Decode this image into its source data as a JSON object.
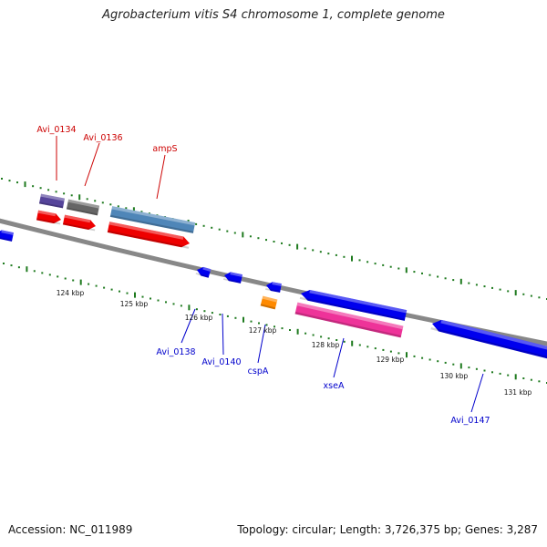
{
  "header": {
    "title": "Agrobacterium vitis S4 chromosome 1, complete genome"
  },
  "footer": {
    "accession": "Accession: NC_011989",
    "topology": "Topology: circular; Length: 3,726,375 bp; Genes: 3,287"
  },
  "scale_labels": [
    {
      "id": "124",
      "text": "124 kbp"
    },
    {
      "id": "125",
      "text": "125 kbp"
    },
    {
      "id": "126",
      "text": "126 kbp"
    },
    {
      "id": "127",
      "text": "127 kbp"
    },
    {
      "id": "128",
      "text": "128 kbp"
    },
    {
      "id": "129",
      "text": "129 kbp"
    },
    {
      "id": "130",
      "text": "130 kbp"
    },
    {
      "id": "131",
      "text": "131 kbp"
    }
  ],
  "gene_labels": [
    {
      "id": "avi0134",
      "text": "Avi_0134"
    },
    {
      "id": "avi0136",
      "text": "Avi_0136"
    },
    {
      "id": "amps",
      "text": "ampS"
    },
    {
      "id": "avi0138",
      "text": "Avi_0138"
    },
    {
      "id": "avi0140",
      "text": "Avi_0140"
    },
    {
      "id": "cspa",
      "text": "cspA"
    },
    {
      "id": "xsea",
      "text": "xseA"
    },
    {
      "id": "avi0147",
      "text": "Avi_0147"
    }
  ],
  "colors": {
    "forward_gene": "#ee0000",
    "reverse_gene": "#0000ee",
    "label_forward": "#cc0000",
    "label_reverse": "#0000cc",
    "backbone": "#888888",
    "tick": "#1e7a1e",
    "cog_purple": "#55449a",
    "cog_gray": "#666666",
    "cog_steelblue": "#4f86b8",
    "cog_orange": "#ff8a00",
    "cog_pink": "#ee3399"
  }
}
